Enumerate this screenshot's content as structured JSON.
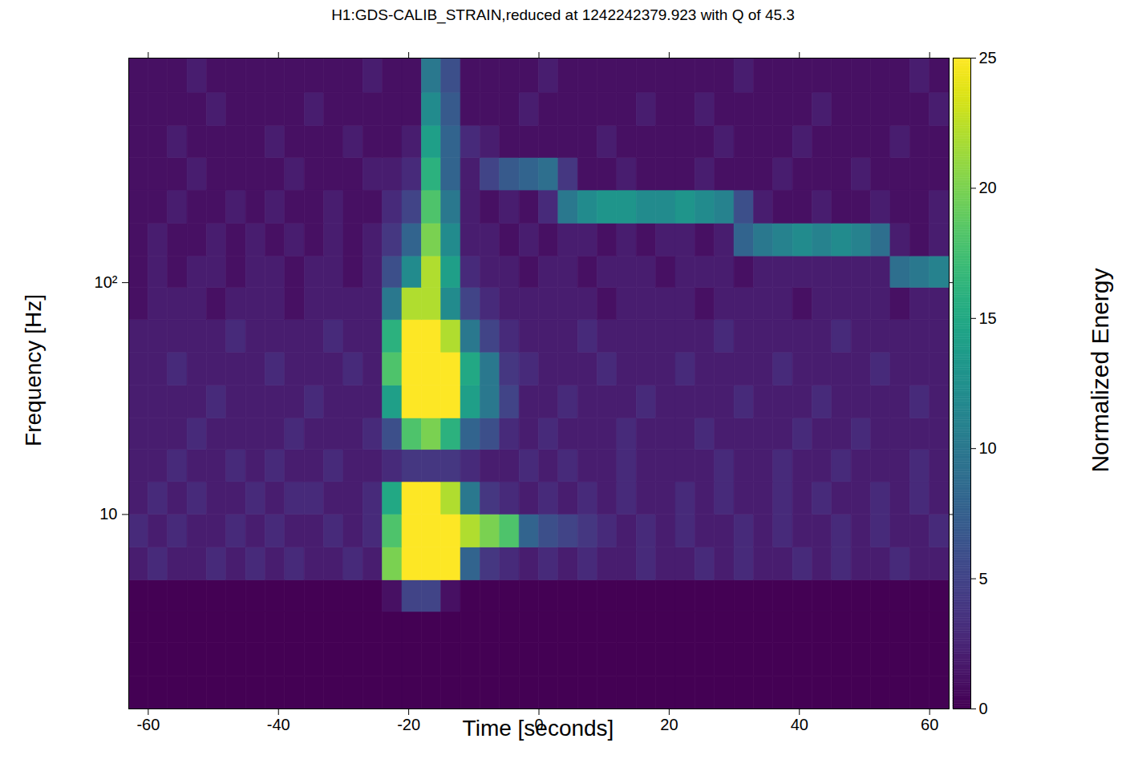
{
  "chart_data": {
    "type": "heatmap",
    "title": "H1:GDS-CALIB_STRAIN,reduced at 1242242379.923 with Q of 45.3",
    "x_label": "Time [seconds]",
    "y_label": "Frequency [Hz]",
    "xlim": [
      -63,
      63
    ],
    "xticks": [
      -60,
      -40,
      -20,
      0,
      20,
      40,
      60
    ],
    "ylim": [
      1.45,
      930
    ],
    "yticks": [
      10,
      {
        "value": 100,
        "label": "10²"
      }
    ],
    "log": "y",
    "color": "viridis",
    "colorbar": {
      "label": "Normalized Energy",
      "range": [
        0,
        25
      ],
      "ticks": [
        0,
        5,
        10,
        15,
        20,
        25
      ]
    },
    "cells": {
      "time_edges": [
        -63,
        -60,
        -57,
        -54,
        -51,
        -48,
        -45,
        -42,
        -39,
        -36,
        -33,
        -30,
        -27,
        -24,
        -21,
        -18,
        -15,
        -12,
        -9,
        -6,
        -3,
        0,
        3,
        6,
        9,
        12,
        15,
        18,
        21,
        24,
        27,
        30,
        33,
        36,
        39,
        42,
        45,
        48,
        51,
        54,
        57,
        60,
        63
      ],
      "frequency_edges": [
        1.45,
        2,
        2.8,
        3.8,
        5.2,
        7.2,
        10,
        13.8,
        19,
        26,
        36,
        50,
        69,
        95,
        130,
        180,
        250,
        345,
        475,
        660,
        930
      ],
      "energy": [
        [
          0,
          0,
          0,
          0,
          0,
          0,
          0,
          0,
          0,
          0,
          0,
          0,
          0,
          0,
          0,
          0,
          0,
          0,
          0,
          0,
          0,
          0,
          0,
          0,
          0,
          0,
          0,
          0,
          0,
          0,
          0,
          0,
          0,
          0,
          0,
          0,
          0,
          0,
          0,
          0,
          0,
          0
        ],
        [
          0,
          0,
          0,
          0,
          0,
          0,
          0,
          0,
          0,
          0,
          0,
          0,
          0,
          0,
          0,
          0,
          0,
          0,
          0,
          0,
          0,
          0,
          0,
          0,
          0,
          0,
          0,
          0,
          0,
          0,
          0,
          0,
          0,
          0,
          0,
          0,
          0,
          0,
          0,
          0,
          0,
          0
        ],
        [
          0,
          0,
          0,
          0,
          0,
          0,
          0,
          0,
          0,
          0,
          0,
          0,
          0,
          0,
          0,
          0,
          0,
          0,
          0,
          0,
          0,
          0,
          0,
          0,
          0,
          0,
          0,
          0,
          0,
          0,
          0,
          0,
          0,
          0,
          0,
          0,
          0,
          0,
          0,
          0,
          0,
          0
        ],
        [
          0,
          0,
          0,
          0,
          0,
          0,
          0,
          0,
          0,
          0,
          0,
          0,
          0,
          1,
          5,
          5,
          1,
          0,
          0,
          0,
          0,
          0,
          0,
          0,
          0,
          0,
          0,
          0,
          0,
          0,
          0,
          0,
          0,
          0,
          0,
          0,
          0,
          0,
          0,
          0,
          0,
          0
        ],
        [
          2,
          3,
          2,
          2,
          3,
          2,
          3,
          2,
          3,
          2,
          2,
          3,
          2,
          20,
          25,
          25,
          25,
          8,
          4,
          3,
          2,
          3,
          2,
          3,
          2,
          2,
          3,
          2,
          2,
          3,
          2,
          3,
          2,
          2,
          3,
          2,
          3,
          2,
          2,
          3,
          2,
          2
        ],
        [
          3,
          2,
          3,
          2,
          2,
          3,
          2,
          3,
          2,
          2,
          3,
          2,
          3,
          18,
          25,
          25,
          25,
          22,
          20,
          18,
          8,
          6,
          5,
          4,
          3,
          2,
          3,
          2,
          3,
          2,
          2,
          3,
          2,
          3,
          2,
          2,
          3,
          2,
          3,
          2,
          2,
          3
        ],
        [
          2,
          3,
          2,
          3,
          2,
          2,
          3,
          2,
          3,
          3,
          2,
          2,
          3,
          15,
          25,
          25,
          22,
          10,
          4,
          3,
          2,
          3,
          2,
          3,
          2,
          3,
          2,
          2,
          3,
          2,
          3,
          2,
          2,
          3,
          2,
          3,
          2,
          2,
          3,
          2,
          3,
          2
        ],
        [
          2,
          2,
          3,
          2,
          2,
          3,
          2,
          3,
          2,
          2,
          3,
          2,
          2,
          3,
          4,
          4,
          4,
          3,
          2,
          2,
          3,
          2,
          3,
          2,
          2,
          3,
          2,
          2,
          2,
          2,
          3,
          2,
          2,
          3,
          2,
          2,
          3,
          2,
          2,
          2,
          3,
          2
        ],
        [
          2,
          2,
          2,
          3,
          2,
          2,
          2,
          2,
          3,
          2,
          2,
          2,
          3,
          6,
          18,
          20,
          16,
          8,
          6,
          3,
          2,
          3,
          2,
          2,
          2,
          3,
          2,
          2,
          2,
          3,
          2,
          2,
          2,
          2,
          3,
          2,
          2,
          3,
          2,
          2,
          2,
          2
        ],
        [
          2,
          2,
          2,
          2,
          3,
          2,
          2,
          2,
          2,
          3,
          2,
          2,
          2,
          14,
          25,
          25,
          25,
          14,
          10,
          5,
          2,
          2,
          3,
          2,
          2,
          2,
          3,
          2,
          2,
          2,
          2,
          3,
          2,
          2,
          2,
          3,
          2,
          2,
          2,
          2,
          3,
          2
        ],
        [
          2,
          2,
          3,
          2,
          2,
          2,
          2,
          3,
          2,
          2,
          2,
          3,
          2,
          18,
          25,
          25,
          25,
          15,
          10,
          4,
          3,
          2,
          2,
          2,
          3,
          2,
          2,
          2,
          3,
          2,
          2,
          2,
          2,
          3,
          2,
          2,
          2,
          2,
          3,
          2,
          2,
          2
        ],
        [
          2,
          2,
          2,
          2,
          2,
          3,
          2,
          2,
          2,
          2,
          3,
          2,
          2,
          16,
          25,
          25,
          22,
          10,
          5,
          3,
          2,
          2,
          2,
          3,
          2,
          2,
          2,
          2,
          2,
          2,
          3,
          2,
          2,
          2,
          2,
          2,
          3,
          2,
          2,
          2,
          2,
          2
        ],
        [
          1,
          2,
          2,
          2,
          1,
          2,
          2,
          2,
          1,
          2,
          2,
          2,
          2,
          10,
          22,
          22,
          12,
          5,
          3,
          2,
          2,
          2,
          2,
          2,
          1,
          2,
          2,
          2,
          2,
          1,
          2,
          2,
          2,
          2,
          1,
          2,
          2,
          2,
          2,
          1,
          2,
          2
        ],
        [
          1,
          2,
          1,
          2,
          2,
          1,
          2,
          2,
          1,
          2,
          2,
          1,
          2,
          6,
          12,
          22,
          14,
          3,
          2,
          2,
          1,
          2,
          2,
          1,
          2,
          2,
          2,
          1,
          2,
          2,
          2,
          1,
          2,
          2,
          2,
          2,
          2,
          2,
          2,
          9,
          10,
          11
        ],
        [
          1,
          2,
          1,
          1,
          2,
          1,
          2,
          1,
          2,
          1,
          2,
          1,
          2,
          4,
          8,
          20,
          12,
          2,
          2,
          1,
          2,
          1,
          2,
          2,
          1,
          2,
          1,
          2,
          2,
          1,
          2,
          8,
          10,
          11,
          12,
          11,
          12,
          11,
          9,
          2,
          1,
          2
        ],
        [
          1,
          1,
          2,
          1,
          1,
          2,
          1,
          2,
          1,
          1,
          2,
          1,
          1,
          3,
          5,
          18,
          10,
          2,
          1,
          2,
          1,
          3,
          10,
          12,
          13,
          13,
          12,
          12,
          13,
          12,
          11,
          6,
          2,
          1,
          1,
          2,
          1,
          1,
          2,
          1,
          1,
          2
        ],
        [
          1,
          1,
          1,
          2,
          1,
          1,
          1,
          1,
          2,
          1,
          1,
          1,
          2,
          2,
          3,
          16,
          8,
          2,
          5,
          7,
          8,
          9,
          4,
          1,
          1,
          2,
          1,
          1,
          1,
          2,
          1,
          1,
          1,
          2,
          1,
          1,
          1,
          2,
          1,
          1,
          1,
          1
        ],
        [
          1,
          1,
          2,
          1,
          1,
          1,
          1,
          2,
          1,
          1,
          1,
          2,
          1,
          1,
          2,
          14,
          8,
          3,
          2,
          1,
          1,
          1,
          1,
          1,
          2,
          1,
          1,
          1,
          1,
          1,
          2,
          1,
          1,
          1,
          2,
          1,
          1,
          1,
          1,
          2,
          1,
          1
        ],
        [
          1,
          1,
          1,
          1,
          2,
          1,
          1,
          1,
          1,
          2,
          1,
          1,
          1,
          1,
          1,
          12,
          7,
          1,
          1,
          1,
          2,
          1,
          1,
          1,
          1,
          1,
          2,
          1,
          1,
          2,
          1,
          1,
          1,
          1,
          1,
          2,
          1,
          1,
          1,
          1,
          1,
          2
        ],
        [
          1,
          1,
          1,
          2,
          1,
          1,
          1,
          1,
          1,
          1,
          1,
          1,
          2,
          1,
          1,
          10,
          6,
          1,
          1,
          1,
          1,
          2,
          1,
          1,
          1,
          1,
          1,
          1,
          1,
          1,
          1,
          2,
          1,
          1,
          1,
          1,
          1,
          1,
          1,
          1,
          2,
          1
        ]
      ]
    }
  }
}
